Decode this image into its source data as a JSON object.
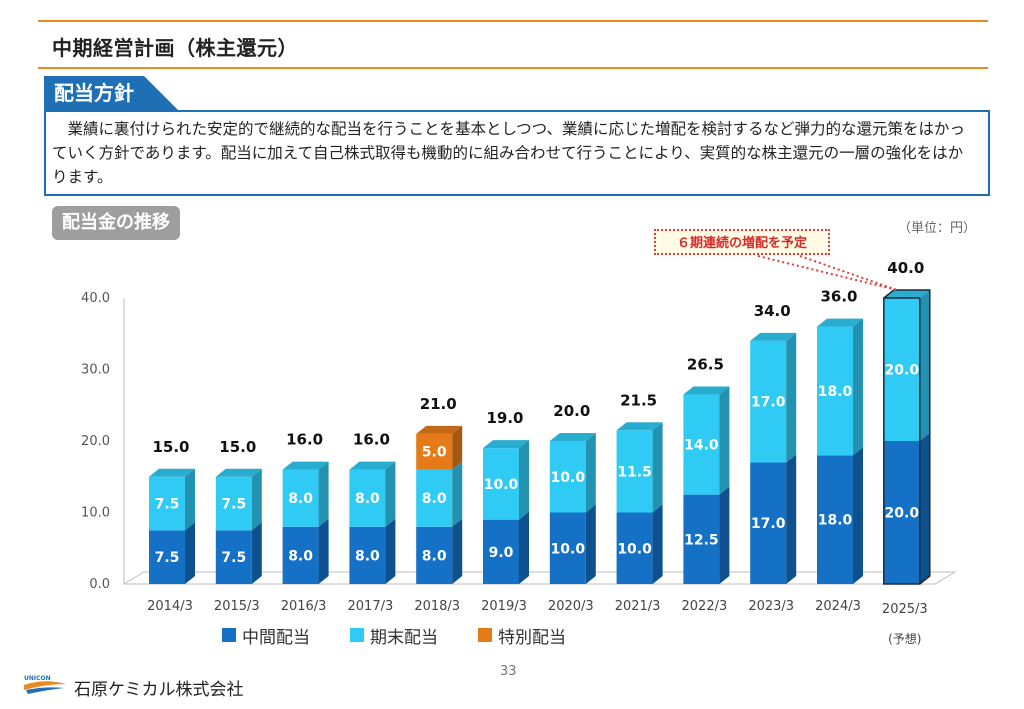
{
  "page_title": "中期経営計画（株主還元）",
  "policy": {
    "heading": "配当方針",
    "text": "業績に裏付けられた安定的で継続的な配当を行うことを基本としつつ、業績に応じた増配を検討するなど弾力的な還元策をはかっていく方針であります。配当に加えて自己株式取得も機動的に組み合わせて行うことにより、実質的な株主還元の一層の強化をはかります。"
  },
  "section_label": "配当金の推移",
  "unit_label": "（単位：円）",
  "callout": "６期連続の増配を予定",
  "page_number": "33",
  "company_name": "石原ケミカル株式会社",
  "logo_text": "UNICON",
  "colors": {
    "interim": "#1471c5",
    "year_end": "#2fcbf5",
    "special": "#e57a18",
    "forecast_outline": "#1c2b3a",
    "accent": "#e98a25",
    "policy_blue": "#1f6fb4"
  },
  "chart_data": {
    "type": "bar",
    "stacked": true,
    "categories": [
      "2014/3",
      "2015/3",
      "2016/3",
      "2017/3",
      "2018/3",
      "2019/3",
      "2020/3",
      "2021/3",
      "2022/3",
      "2023/3",
      "2024/3",
      "2025/3"
    ],
    "category_notes": [
      "",
      "",
      "",
      "",
      "",
      "",
      "",
      "",
      "",
      "",
      "",
      "(予想)"
    ],
    "series": [
      {
        "name": "中間配当",
        "values": [
          7.5,
          7.5,
          8.0,
          8.0,
          8.0,
          9.0,
          10.0,
          10.0,
          12.5,
          17.0,
          18.0,
          20.0
        ]
      },
      {
        "name": "期末配当",
        "values": [
          7.5,
          7.5,
          8.0,
          8.0,
          8.0,
          10.0,
          10.0,
          11.5,
          14.0,
          17.0,
          18.0,
          20.0
        ]
      },
      {
        "name": "特別配当",
        "values": [
          0,
          0,
          0,
          0,
          5.0,
          0,
          0,
          0,
          0,
          0,
          0,
          0
        ]
      }
    ],
    "totals": [
      15.0,
      15.0,
      16.0,
      16.0,
      21.0,
      19.0,
      20.0,
      21.5,
      26.5,
      34.0,
      36.0,
      40.0
    ],
    "ylim": [
      0,
      40
    ],
    "yticks": [
      0,
      10,
      20,
      30,
      40
    ],
    "forecast_index": 11,
    "legend_position": "bottom",
    "grid": false
  }
}
